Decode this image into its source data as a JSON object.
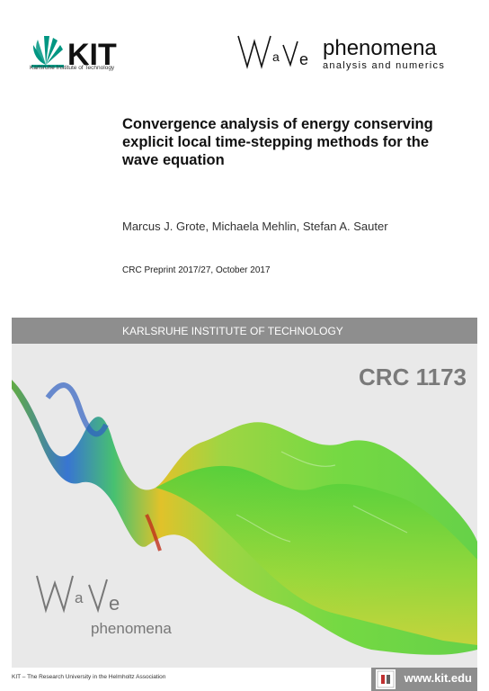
{
  "header": {
    "kit_logo_text": "KIT",
    "kit_subtitle": "Karlsruhe Institute of Technology",
    "wave_logo_letters": "WaVe",
    "wave_title": "phenomena",
    "wave_subtitle": "analysis and numerics"
  },
  "document": {
    "title": "Convergence analysis of energy conserving explicit local time-stepping methods for the wave equation",
    "authors": "Marcus J. Grote, Michaela Mehlin, Stefan A. Sauter",
    "preprint": "CRC Preprint 2017/27, October 2017"
  },
  "banner": {
    "institute": "KARLSRUHE INSTITUTE OF TECHNOLOGY"
  },
  "graphic": {
    "crc_label": "CRC 1173",
    "wave_logo_letters": "WaVe",
    "wave_logo_word": "phenomena"
  },
  "footer": {
    "tagline": "KIT – The Research University in the Helmholtz Association",
    "url": "www.kit.edu"
  },
  "colors": {
    "kit_green": "#009682",
    "bar_gray": "#8e8e8e",
    "crc_gray": "#7a7a7a"
  }
}
